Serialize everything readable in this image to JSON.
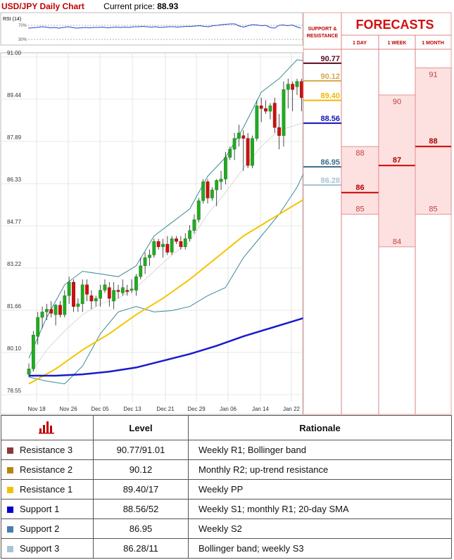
{
  "header": {
    "title": "USD/JPY Daily Chart",
    "current_price_label": "Current price:",
    "current_price": "88.93"
  },
  "rsi": {
    "label": "RSI (14)",
    "ticks": [
      "70%",
      "30%"
    ]
  },
  "forecast_panel": {
    "support_resistance_label": [
      "SUPPORT &",
      "RESISTANCE"
    ],
    "title": "FORECASTS",
    "columns": [
      "1 DAY",
      "1 WEEK",
      "1 MONTH"
    ]
  },
  "chart_data": [
    {
      "type": "candlestick",
      "ylim": [
        78.55,
        91.0
      ],
      "y_ticks": [
        "91.00",
        "89.44",
        "87.89",
        "86.33",
        "84.77",
        "83.22",
        "81.66",
        "80.10",
        "78.55"
      ],
      "x_ticks": [
        "Nov 18",
        "Nov 26",
        "Dec 05",
        "Dec 13",
        "Dec 21",
        "Dec 29",
        "Jan 06",
        "Jan 14",
        "Jan 22"
      ],
      "candles": [
        [
          79.3,
          79.7,
          79.2,
          79.5
        ],
        [
          79.5,
          80.9,
          79.4,
          80.75
        ],
        [
          80.7,
          81.6,
          80.4,
          81.4
        ],
        [
          81.4,
          81.8,
          81.0,
          81.6
        ],
        [
          81.6,
          81.9,
          81.3,
          81.7
        ],
        [
          81.7,
          82.0,
          81.4,
          81.55
        ],
        [
          81.5,
          81.9,
          81.1,
          81.85
        ],
        [
          81.85,
          82.0,
          81.4,
          81.5
        ],
        [
          81.5,
          82.4,
          81.4,
          82.2
        ],
        [
          82.2,
          82.9,
          81.9,
          82.7
        ],
        [
          82.7,
          82.8,
          81.6,
          81.8
        ],
        [
          81.8,
          82.1,
          81.6,
          81.9
        ],
        [
          81.9,
          82.8,
          81.6,
          82.6
        ],
        [
          82.6,
          82.8,
          82.0,
          82.25
        ],
        [
          82.2,
          82.4,
          81.7,
          82.0
        ],
        [
          82.0,
          82.2,
          81.8,
          82.1
        ],
        [
          82.1,
          82.6,
          81.8,
          82.4
        ],
        [
          82.4,
          82.8,
          82.3,
          82.6
        ],
        [
          82.5,
          82.7,
          81.8,
          82.1
        ],
        [
          82.0,
          82.7,
          81.7,
          82.4
        ],
        [
          82.4,
          82.6,
          82.1,
          82.35
        ],
        [
          82.3,
          82.8,
          82.2,
          82.5
        ],
        [
          82.4,
          82.6,
          82.2,
          82.35
        ],
        [
          82.4,
          82.8,
          82.3,
          82.45
        ],
        [
          82.4,
          83.0,
          82.2,
          82.9
        ],
        [
          82.9,
          83.6,
          82.8,
          83.3
        ],
        [
          83.3,
          83.8,
          83.0,
          83.6
        ],
        [
          83.6,
          83.9,
          83.3,
          83.7
        ],
        [
          83.7,
          84.3,
          83.6,
          84.2
        ],
        [
          84.2,
          84.3,
          83.9,
          84.0
        ],
        [
          84.0,
          84.3,
          83.6,
          84.1
        ],
        [
          84.1,
          84.4,
          83.7,
          83.8
        ],
        [
          83.8,
          84.4,
          83.7,
          84.3
        ],
        [
          84.3,
          84.4,
          84.1,
          84.2
        ],
        [
          84.2,
          84.4,
          83.9,
          84.0
        ],
        [
          84.0,
          84.5,
          83.9,
          84.3
        ],
        [
          84.3,
          84.8,
          84.2,
          84.6
        ],
        [
          84.6,
          85.2,
          84.5,
          85.0
        ],
        [
          85.0,
          85.8,
          84.9,
          85.7
        ],
        [
          85.7,
          86.5,
          85.6,
          86.4
        ],
        [
          86.4,
          86.5,
          85.6,
          85.8
        ],
        [
          85.8,
          86.2,
          85.7,
          86.1
        ],
        [
          86.1,
          86.5,
          85.5,
          86.45
        ],
        [
          86.4,
          86.8,
          86.1,
          86.5
        ],
        [
          86.5,
          87.5,
          86.3,
          87.3
        ],
        [
          87.3,
          87.7,
          87.2,
          87.6
        ],
        [
          87.6,
          88.2,
          87.2,
          88.0
        ],
        [
          88.0,
          88.5,
          87.7,
          88.2
        ],
        [
          88.1,
          88.3,
          86.8,
          88.0
        ],
        [
          88.0,
          88.2,
          86.9,
          87.0
        ],
        [
          87.0,
          88.1,
          86.9,
          88.0
        ],
        [
          88.0,
          89.4,
          87.9,
          89.2
        ],
        [
          89.2,
          89.5,
          88.6,
          89.1
        ],
        [
          89.1,
          89.4,
          88.9,
          89.0
        ],
        [
          89.0,
          89.3,
          88.7,
          89.2
        ],
        [
          89.3,
          89.5,
          88.2,
          88.4
        ],
        [
          88.4,
          88.9,
          87.6,
          88.1
        ],
        [
          88.1,
          90.1,
          87.7,
          89.8
        ],
        [
          89.8,
          90.2,
          89.1,
          90.0
        ],
        [
          90.0,
          90.1,
          89.0,
          89.8
        ],
        [
          89.9,
          90.2,
          89.6,
          90.1
        ],
        [
          90.1,
          90.2,
          89.0,
          89.5
        ],
        [
          89.4,
          89.5,
          88.5,
          88.9
        ]
      ],
      "bollinger_upper": [
        [
          0,
          79.9
        ],
        [
          4,
          81.4
        ],
        [
          8,
          82.6
        ],
        [
          12,
          83.1
        ],
        [
          16,
          83.0
        ],
        [
          20,
          82.9
        ],
        [
          24,
          83.3
        ],
        [
          28,
          84.4
        ],
        [
          32,
          84.9
        ],
        [
          36,
          85.4
        ],
        [
          40,
          86.6
        ],
        [
          44,
          87.3
        ],
        [
          48,
          88.4
        ],
        [
          52,
          89.7
        ],
        [
          56,
          90.2
        ],
        [
          60,
          90.9
        ],
        [
          62,
          90.85
        ]
      ],
      "bollinger_middle": [
        [
          0,
          79.25
        ],
        [
          4,
          80.2
        ],
        [
          8,
          80.9
        ],
        [
          12,
          81.5
        ],
        [
          16,
          81.9
        ],
        [
          20,
          82.1
        ],
        [
          24,
          82.5
        ],
        [
          28,
          83.1
        ],
        [
          32,
          83.7
        ],
        [
          36,
          84.2
        ],
        [
          40,
          85.2
        ],
        [
          44,
          86.0
        ],
        [
          48,
          86.9
        ],
        [
          52,
          87.7
        ],
        [
          56,
          88.3
        ],
        [
          60,
          88.5
        ],
        [
          62,
          88.6
        ]
      ],
      "bollinger_lower": [
        [
          0,
          79.2
        ],
        [
          4,
          79.05
        ],
        [
          8,
          78.95
        ],
        [
          12,
          79.6
        ],
        [
          16,
          80.8
        ],
        [
          20,
          81.6
        ],
        [
          24,
          81.8
        ],
        [
          28,
          81.6
        ],
        [
          32,
          81.65
        ],
        [
          36,
          81.8
        ],
        [
          40,
          82.2
        ],
        [
          44,
          82.5
        ],
        [
          48,
          83.6
        ],
        [
          52,
          84.4
        ],
        [
          56,
          85.2
        ],
        [
          60,
          86.2
        ],
        [
          62,
          86.9
        ]
      ],
      "sma_yellow": [
        [
          0,
          78.95
        ],
        [
          6,
          79.5
        ],
        [
          12,
          80.2
        ],
        [
          18,
          80.8
        ],
        [
          24,
          81.5
        ],
        [
          30,
          82.1
        ],
        [
          36,
          82.8
        ],
        [
          42,
          83.6
        ],
        [
          48,
          84.4
        ],
        [
          54,
          85.0
        ],
        [
          58,
          85.4
        ],
        [
          62,
          85.8
        ]
      ],
      "sma_blue": [
        [
          0,
          79.25
        ],
        [
          6,
          79.25
        ],
        [
          12,
          79.3
        ],
        [
          18,
          79.4
        ],
        [
          24,
          79.55
        ],
        [
          30,
          79.8
        ],
        [
          36,
          80.05
        ],
        [
          42,
          80.35
        ],
        [
          48,
          80.7
        ],
        [
          54,
          81.0
        ],
        [
          58,
          81.2
        ],
        [
          62,
          81.4
        ]
      ],
      "sr_levels": [
        {
          "label": "90.77",
          "value": 90.77,
          "color": "#5a0a1e"
        },
        {
          "label": "90.12",
          "value": 90.12,
          "color": "#d4a849"
        },
        {
          "label": "89.40",
          "value": 89.4,
          "color": "#f0b800"
        },
        {
          "label": "88.56",
          "value": 88.56,
          "color": "#1111b8"
        },
        {
          "label": "86.95",
          "value": 86.95,
          "color": "#3a6b8a"
        },
        {
          "label": "86.28",
          "value": 86.28,
          "color": "#a9c4d4"
        }
      ],
      "forecasts": [
        {
          "horizon": "1 DAY",
          "low": "85",
          "mid": "86",
          "high": "88",
          "low_v": 85.2,
          "mid_v": 86.0,
          "high_v": 87.7
        },
        {
          "horizon": "1 WEEK",
          "low": "84",
          "mid": "87",
          "high": "90",
          "low_v": 84.0,
          "mid_v": 87.0,
          "high_v": 89.6
        },
        {
          "horizon": "1 MONTH",
          "low": "85",
          "mid": "88",
          "high": "91",
          "low_v": 85.2,
          "mid_v": 87.7,
          "high_v": 90.6
        }
      ]
    },
    {
      "type": "line",
      "name": "RSI (14)",
      "values": [
        62,
        63,
        64,
        66,
        65,
        63,
        64,
        62,
        64,
        66,
        64,
        62,
        63,
        64,
        63,
        64,
        64,
        65,
        63,
        64,
        65,
        64,
        65,
        64,
        66,
        66,
        67,
        66,
        65,
        66,
        64,
        65,
        66,
        66,
        65,
        66,
        67,
        67,
        68,
        69,
        67,
        66,
        69,
        70,
        72,
        73,
        74,
        74,
        68,
        65,
        69,
        72,
        71,
        69,
        70,
        64,
        62,
        70,
        71,
        69,
        71,
        66,
        62
      ]
    }
  ],
  "table": {
    "headers": {
      "level": "Level",
      "rationale": "Rationale"
    },
    "rows": [
      {
        "name": "Resistance 3",
        "level": "90.77/91.01",
        "rationale": "Weekly R1; Bollinger band",
        "color": "#8b3a3a"
      },
      {
        "name": "Resistance 2",
        "level": "90.12",
        "rationale": "Monthly R2; up-trend resistance",
        "color": "#b8860b"
      },
      {
        "name": "Resistance 1",
        "level": "89.40/17",
        "rationale": "Weekly PP",
        "color": "#f5c000"
      },
      {
        "name": "Support 1",
        "level": "88.56/52",
        "rationale": "Weekly S1; monthly R1; 20-day SMA",
        "color": "#0000cc"
      },
      {
        "name": "Support 2",
        "level": "86.95",
        "rationale": "Weekly S2",
        "color": "#4a7faa"
      },
      {
        "name": "Support 3",
        "level": "86.28/11",
        "rationale": "Bollinger band; weekly S3",
        "color": "#a9c4d4"
      }
    ]
  }
}
